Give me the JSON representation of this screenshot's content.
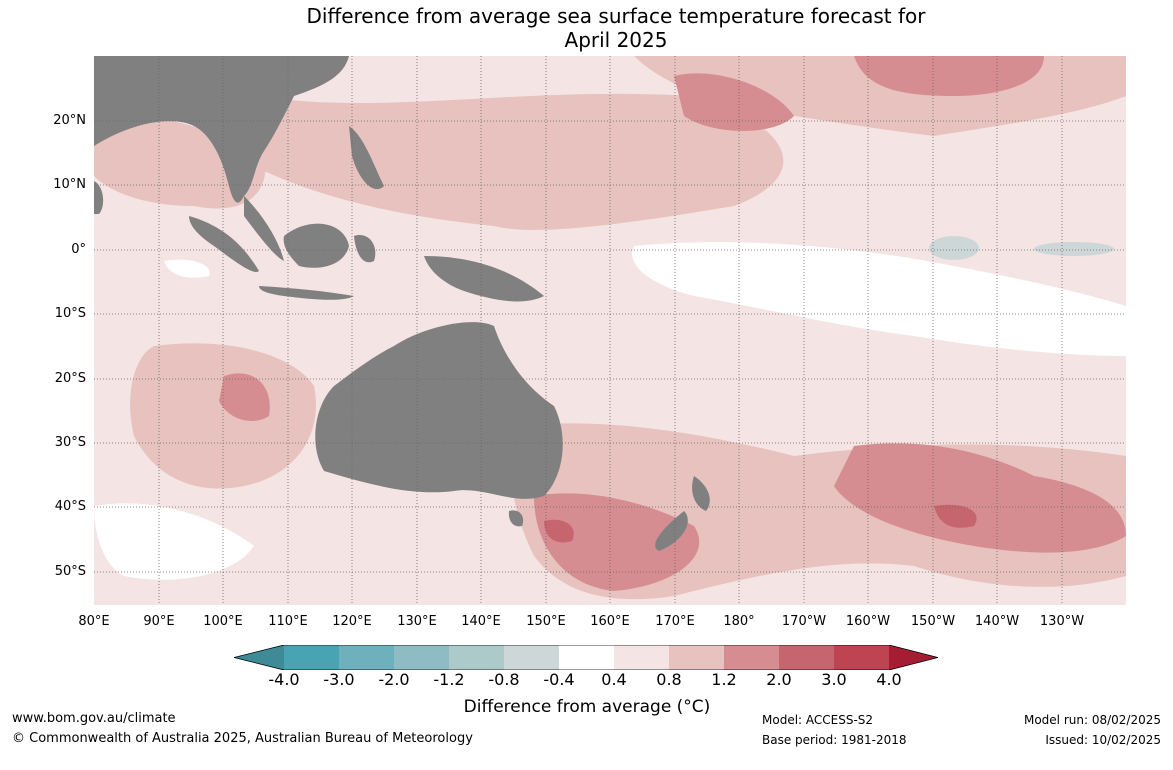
{
  "title": {
    "line1": "Difference from average sea surface temperature forecast for",
    "line2": "April 2025"
  },
  "lat_labels": [
    "20°N",
    "10°N",
    "0°",
    "10°S",
    "20°S",
    "30°S",
    "40°S",
    "50°S"
  ],
  "lon_labels": [
    "80°E",
    "90°E",
    "100°E",
    "110°E",
    "120°E",
    "130°E",
    "140°E",
    "150°E",
    "160°E",
    "170°E",
    "180°",
    "170°W",
    "160°W",
    "150°W",
    "140°W",
    "130°W"
  ],
  "colorbar": {
    "ticks": [
      "-4.0",
      "-3.0",
      "-2.0",
      "-1.2",
      "-0.8",
      "-0.4",
      "0.4",
      "0.8",
      "1.2",
      "2.0",
      "3.0",
      "4.0"
    ],
    "colors": [
      "#3e8a96",
      "#49a3b3",
      "#6eb0bc",
      "#8fbcc4",
      "#adcaca",
      "#cdd7d8",
      "#ffffff",
      "#f4e4e3",
      "#e7c2be",
      "#d58d92",
      "#c7656f",
      "#bd4450",
      "#a51d33"
    ],
    "label": "Difference from average (°C)"
  },
  "footer": {
    "website": "www.bom.gov.au/climate",
    "copyright": "© Commonwealth of Australia 2025, Australian Bureau of Meteorology",
    "model": "Model: ACCESS-S2",
    "base_period": "Base period: 1981-2018",
    "model_run": "Model run: 08/02/2025",
    "issued": "Issued: 10/02/2025"
  },
  "land_color": "#808080"
}
